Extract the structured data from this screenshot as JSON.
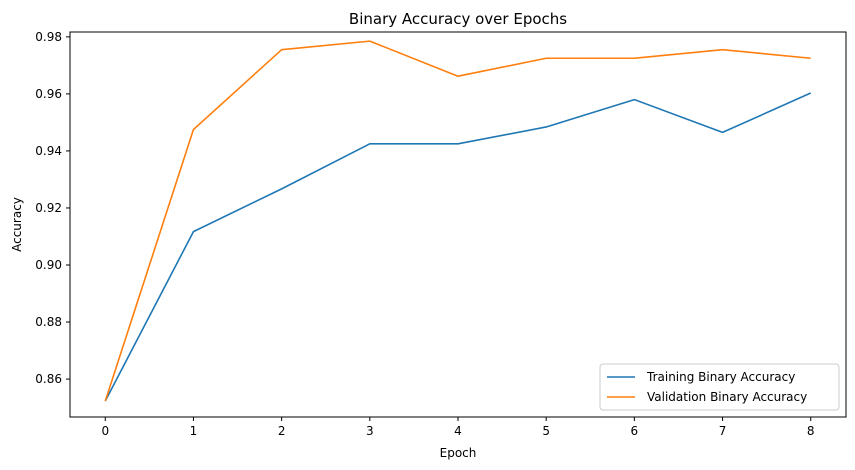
{
  "chart_data": {
    "type": "line",
    "title": "Binary Accuracy over Epochs",
    "xlabel": "Epoch",
    "ylabel": "Accuracy",
    "x": [
      0,
      1,
      2,
      3,
      4,
      5,
      6,
      7,
      8
    ],
    "xticks": [
      "0",
      "1",
      "2",
      "3",
      "4",
      "5",
      "6",
      "7",
      "8"
    ],
    "yticks": [
      "0.86",
      "0.88",
      "0.90",
      "0.92",
      "0.94",
      "0.96",
      "0.98"
    ],
    "ytick_values": [
      0.86,
      0.88,
      0.9,
      0.92,
      0.94,
      0.96,
      0.98
    ],
    "xlim": [
      -0.4,
      8.4
    ],
    "ylim": [
      0.8467,
      0.9817
    ],
    "grid": false,
    "legend_position": "lower-right",
    "series": [
      {
        "name": "Training Binary Accuracy",
        "color": "#1f77b4",
        "values": [
          0.8523,
          0.9117,
          0.9267,
          0.9425,
          0.9425,
          0.9484,
          0.958,
          0.9465,
          0.9603
        ]
      },
      {
        "name": "Validation Binary Accuracy",
        "color": "#ff7f0e",
        "values": [
          0.8523,
          0.9475,
          0.9755,
          0.9785,
          0.9662,
          0.9725,
          0.9725,
          0.9755,
          0.9725
        ]
      }
    ]
  }
}
